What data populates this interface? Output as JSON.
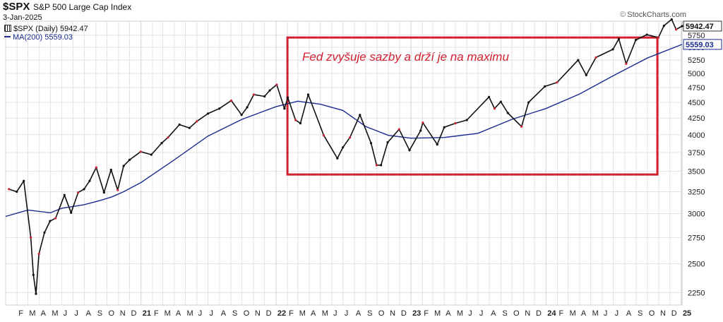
{
  "header": {
    "symbol": "$SPX",
    "name": "S&P 500 Large Cap Index",
    "date": "3-Jan-2025",
    "source": "StockCharts.com",
    "source_icon": "copyright-icon"
  },
  "legend": {
    "price": "$SPX (Daily) 5942.47",
    "ma": "MA(200) 5559.03"
  },
  "annotation": {
    "text": "Fed zvyšuje sazby a drží je na maximu",
    "start": "Feb 2022",
    "end": "Sep 2024",
    "low": 3460,
    "high": 5700
  },
  "colors": {
    "price": "#111111",
    "price_down": "#cc2233",
    "ma": "#1a2b8f",
    "annotation": "#d32030",
    "grid": "#e3e3e3"
  },
  "chart_data": {
    "type": "line",
    "title": "S&P 500 Large Cap Index",
    "ylim": [
      2150,
      6050
    ],
    "y_scale": "log",
    "grid": true,
    "y_ticks": [
      2250,
      2500,
      2750,
      3000,
      3250,
      3500,
      3750,
      4000,
      4250,
      4500,
      4750,
      5000,
      5250,
      5500,
      5750
    ],
    "x_ticks": [
      "F",
      "M",
      "A",
      "M",
      "J",
      "J",
      "A",
      "S",
      "O",
      "N",
      "D",
      "21",
      "F",
      "M",
      "A",
      "M",
      "J",
      "J",
      "A",
      "S",
      "O",
      "N",
      "D",
      "22",
      "F",
      "M",
      "A",
      "M",
      "J",
      "J",
      "A",
      "S",
      "O",
      "N",
      "D",
      "23",
      "F",
      "M",
      "A",
      "M",
      "J",
      "J",
      "A",
      "S",
      "O",
      "N",
      "D",
      "24",
      "F",
      "M",
      "A",
      "M",
      "J",
      "J",
      "A",
      "S",
      "O",
      "N",
      "D",
      "25"
    ],
    "last_values": {
      "price": "5942.47",
      "ma": "5559.03"
    },
    "series": [
      {
        "name": "$SPX (Daily)",
        "x": [
          "2020-01-10",
          "2020-01-31",
          "2020-02-19",
          "2020-03-09",
          "2020-03-16",
          "2020-03-23",
          "2020-03-31",
          "2020-04-15",
          "2020-04-30",
          "2020-05-15",
          "2020-06-08",
          "2020-06-26",
          "2020-07-15",
          "2020-07-31",
          "2020-08-15",
          "2020-09-02",
          "2020-09-23",
          "2020-10-12",
          "2020-10-30",
          "2020-11-15",
          "2020-12-01",
          "2020-12-31",
          "2021-01-29",
          "2021-02-26",
          "2021-03-15",
          "2021-04-15",
          "2021-05-12",
          "2021-06-01",
          "2021-07-01",
          "2021-08-01",
          "2021-09-02",
          "2021-09-30",
          "2021-10-15",
          "2021-11-02",
          "2021-12-01",
          "2021-12-15",
          "2022-01-03",
          "2022-01-24",
          "2022-02-02",
          "2022-02-23",
          "2022-03-08",
          "2022-03-29",
          "2022-05-10",
          "2022-06-16",
          "2022-07-01",
          "2022-07-20",
          "2022-08-16",
          "2022-09-15",
          "2022-09-30",
          "2022-10-12",
          "2022-10-30",
          "2022-11-30",
          "2022-12-28",
          "2023-01-27",
          "2023-02-02",
          "2023-03-13",
          "2023-04-01",
          "2023-05-01",
          "2023-06-01",
          "2023-07-31",
          "2023-08-15",
          "2023-09-01",
          "2023-09-20",
          "2023-10-27",
          "2023-11-15",
          "2023-12-29",
          "2024-01-31",
          "2024-03-28",
          "2024-04-19",
          "2024-05-15",
          "2024-06-30",
          "2024-07-16",
          "2024-08-05",
          "2024-08-31",
          "2024-09-30",
          "2024-10-31",
          "2024-11-15",
          "2024-12-06",
          "2024-12-18",
          "2025-01-03"
        ],
        "values": [
          3280,
          3250,
          3380,
          2750,
          2400,
          2240,
          2590,
          2800,
          2920,
          2950,
          3210,
          3010,
          3240,
          3280,
          3380,
          3550,
          3240,
          3520,
          3270,
          3570,
          3650,
          3760,
          3720,
          3880,
          3960,
          4150,
          4100,
          4200,
          4320,
          4400,
          4530,
          4300,
          4420,
          4630,
          4600,
          4700,
          4800,
          4400,
          4580,
          4220,
          4170,
          4630,
          3990,
          3670,
          3820,
          3960,
          4300,
          3880,
          3580,
          3580,
          3890,
          4080,
          3780,
          4060,
          4180,
          3860,
          4110,
          4170,
          4220,
          4590,
          4400,
          4510,
          4330,
          4120,
          4500,
          4770,
          4840,
          5250,
          4970,
          5300,
          5460,
          5670,
          5180,
          5650,
          5760,
          5700,
          5950,
          6090,
          5870,
          5942.47
        ]
      },
      {
        "name": "MA(200)",
        "x": [
          "2020-01-01",
          "2020-03-01",
          "2020-05-01",
          "2020-06-01",
          "2020-08-01",
          "2020-09-15",
          "2020-10-15",
          "2020-11-15",
          "2021-01-01",
          "2021-04-01",
          "2021-07-01",
          "2021-10-01",
          "2022-01-01",
          "2022-03-01",
          "2022-05-01",
          "2022-07-01",
          "2022-09-01",
          "2022-11-01",
          "2023-01-01",
          "2023-04-01",
          "2023-07-01",
          "2023-10-01",
          "2024-01-01",
          "2024-04-01",
          "2024-07-01",
          "2024-10-01",
          "2025-01-03"
        ],
        "values": [
          2970,
          3040,
          3010,
          3060,
          3100,
          3150,
          3190,
          3250,
          3360,
          3650,
          3980,
          4230,
          4430,
          4520,
          4470,
          4370,
          4120,
          3990,
          3950,
          3960,
          4020,
          4230,
          4400,
          4640,
          4960,
          5290,
          5559.03
        ]
      }
    ]
  }
}
